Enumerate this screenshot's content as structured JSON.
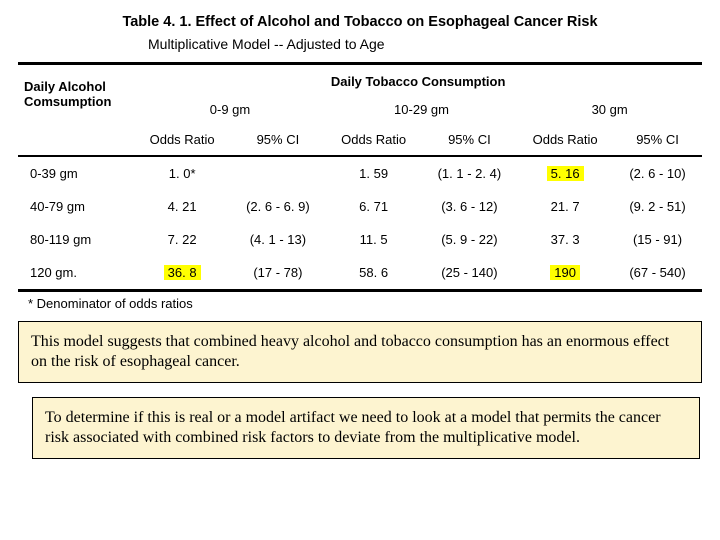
{
  "title": "Table 4. 1.  Effect of Alcohol and Tobacco on Esophageal Cancer Risk",
  "subtitle": "Multiplicative Model -- Adjusted to Age",
  "headers": {
    "alcohol": "Daily Alcohol Comsumption",
    "tobacco": "Daily Tobacco Consumption",
    "groups": [
      "0-9 gm",
      "10-29 gm",
      "30 gm"
    ],
    "cols": [
      "Odds Ratio",
      "95% CI",
      "Odds Ratio",
      "95% CI",
      "Odds Ratio",
      "95% CI"
    ]
  },
  "rows": [
    {
      "label": "0-39 gm",
      "c": [
        "1. 0*",
        "",
        "1. 59",
        "(1. 1 - 2. 4)",
        "5. 16",
        "(2. 6 - 10)"
      ],
      "hl": [
        false,
        false,
        false,
        false,
        true,
        false
      ]
    },
    {
      "label": "40-79 gm",
      "c": [
        "4. 21",
        "(2. 6 - 6. 9)",
        "6. 71",
        "(3. 6 - 12)",
        "21. 7",
        "(9. 2 - 51)"
      ],
      "hl": [
        false,
        false,
        false,
        false,
        false,
        false
      ]
    },
    {
      "label": "80-119 gm",
      "c": [
        "7. 22",
        "(4. 1 - 13)",
        "11. 5",
        "(5. 9 - 22)",
        "37. 3",
        "(15 - 91)"
      ],
      "hl": [
        false,
        false,
        false,
        false,
        false,
        false
      ]
    },
    {
      "label": "120 gm.",
      "c": [
        "36. 8",
        "(17 - 78)",
        "58. 6",
        "(25 - 140)",
        "190",
        "(67 - 540)"
      ],
      "hl": [
        true,
        false,
        false,
        false,
        true,
        false
      ]
    }
  ],
  "footnote": "* Denominator of odds ratios",
  "callout1": "This model suggests that combined heavy alcohol and tobacco consumption has an enormous effect on the risk of esophageal cancer.",
  "callout2": "To determine if this is real or a model artifact we need to look at a model that permits the cancer risk associated with combined risk factors to deviate from the multiplicative model."
}
